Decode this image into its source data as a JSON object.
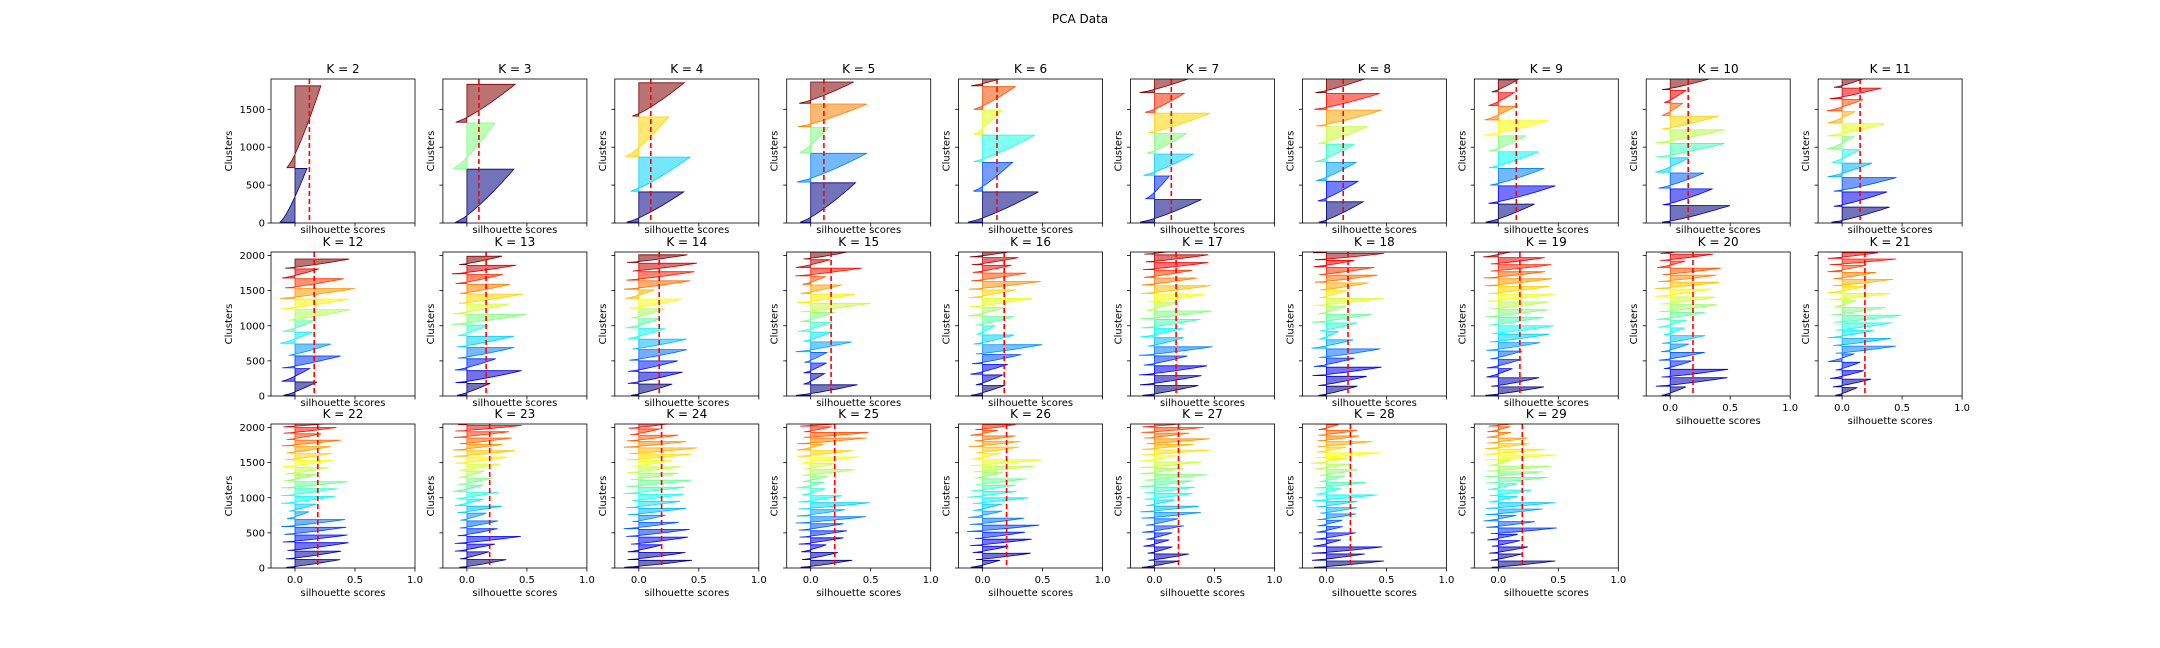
{
  "figure": {
    "title": "PCA Data"
  },
  "chart_data": {
    "type": "silhouette",
    "layout": {
      "rows": 3,
      "cols": 10
    },
    "xlabel": "silhouette scores",
    "ylabel": "Clusters",
    "xlim": [
      -0.2,
      1.0
    ],
    "xticks": [
      0.0,
      0.5,
      1.0
    ],
    "xtick_labels": [
      "0.0",
      "0.5",
      "1.0"
    ],
    "ylim_row1": [
      0,
      1900
    ],
    "yticks_row1": [
      0,
      500,
      1000,
      1500
    ],
    "ylim_rows23": [
      0,
      2050
    ],
    "yticks_rows23": [
      0,
      500,
      1000,
      1500,
      2000
    ],
    "mean_line_color": "#ff0000",
    "colormap": "jet",
    "panels": [
      {
        "title": "K = 2",
        "k": 2,
        "mean": 0.12,
        "sizes": [
          710,
          1080
        ]
      },
      {
        "title": "K = 3",
        "k": 3,
        "mean": 0.1,
        "sizes": [
          700,
          600,
          500
        ]
      },
      {
        "title": "K = 4",
        "k": 4,
        "mean": 0.1,
        "sizes": [
          400,
          450,
          520,
          440
        ]
      },
      {
        "title": "K = 5",
        "k": 5,
        "mean": 0.11,
        "sizes": [
          520,
          380,
          330,
          300,
          280
        ]
      },
      {
        "title": "K = 6",
        "k": 6,
        "mean": 0.12,
        "sizes": [
          400,
          380,
          350,
          320,
          300,
          270
        ]
      },
      {
        "title": "K = 7",
        "k": 7,
        "mean": 0.14,
        "sizes": [
          300,
          300,
          280,
          260,
          260,
          250,
          230
        ]
      },
      {
        "title": "K = 8",
        "k": 8,
        "mean": 0.14,
        "sizes": [
          270,
          260,
          240,
          230,
          220,
          210,
          210,
          200
        ]
      },
      {
        "title": "K = 9",
        "k": 9,
        "mean": 0.15,
        "sizes": [
          240,
          230,
          220,
          210,
          200,
          190,
          180,
          170,
          160
        ]
      },
      {
        "title": "K = 10",
        "k": 10,
        "mean": 0.15,
        "sizes": [
          220,
          210,
          200,
          190,
          180,
          170,
          170,
          160,
          160,
          150
        ]
      },
      {
        "title": "K = 11",
        "k": 11,
        "mean": 0.15,
        "sizes": [
          200,
          190,
          180,
          180,
          170,
          160,
          160,
          150,
          150,
          140,
          130
        ]
      },
      {
        "title": "K = 12",
        "k": 12,
        "mean": 0.16,
        "sizes": [
          190,
          180,
          170,
          160,
          160,
          150,
          150,
          140,
          140,
          130,
          130,
          130
        ]
      },
      {
        "title": "K = 13",
        "k": 13,
        "mean": 0.16,
        "sizes": [
          170,
          170,
          160,
          150,
          150,
          150,
          140,
          140,
          130,
          130,
          130,
          120,
          120
        ]
      },
      {
        "title": "K = 14",
        "k": 14,
        "mean": 0.17,
        "sizes": [
          160,
          160,
          150,
          150,
          140,
          140,
          130,
          130,
          130,
          120,
          120,
          120,
          110,
          110
        ]
      },
      {
        "title": "K = 15",
        "k": 15,
        "mean": 0.17,
        "sizes": [
          150,
          150,
          140,
          140,
          140,
          130,
          130,
          130,
          120,
          120,
          120,
          110,
          110,
          110,
          100
        ]
      },
      {
        "title": "K = 16",
        "k": 16,
        "mean": 0.18,
        "sizes": [
          140,
          140,
          140,
          130,
          130,
          130,
          120,
          120,
          120,
          120,
          110,
          110,
          110,
          100,
          100,
          100
        ]
      },
      {
        "title": "K = 17",
        "k": 17,
        "mean": 0.18,
        "sizes": [
          140,
          130,
          130,
          130,
          120,
          120,
          120,
          120,
          110,
          110,
          110,
          110,
          100,
          100,
          100,
          100,
          90
        ]
      },
      {
        "title": "K = 18",
        "k": 18,
        "mean": 0.18,
        "sizes": [
          130,
          130,
          120,
          120,
          120,
          120,
          110,
          110,
          110,
          110,
          100,
          100,
          100,
          100,
          100,
          90,
          90,
          90
        ]
      },
      {
        "title": "K = 19",
        "k": 19,
        "mean": 0.18,
        "sizes": [
          120,
          120,
          120,
          120,
          110,
          110,
          110,
          110,
          110,
          100,
          100,
          100,
          100,
          100,
          90,
          90,
          90,
          90,
          80
        ]
      },
      {
        "title": "K = 20",
        "k": 20,
        "mean": 0.19,
        "sizes": [
          120,
          120,
          110,
          110,
          110,
          110,
          110,
          100,
          100,
          100,
          100,
          100,
          100,
          90,
          90,
          90,
          90,
          90,
          80,
          80
        ]
      },
      {
        "title": "K = 21",
        "k": 21,
        "mean": 0.19,
        "sizes": [
          110,
          110,
          110,
          110,
          110,
          100,
          100,
          100,
          100,
          100,
          100,
          90,
          90,
          90,
          90,
          90,
          90,
          80,
          80,
          80,
          80
        ]
      },
      {
        "title": "K = 22",
        "k": 22,
        "mean": 0.19,
        "sizes": [
          110,
          110,
          110,
          100,
          100,
          100,
          100,
          100,
          100,
          100,
          90,
          90,
          90,
          90,
          90,
          90,
          80,
          80,
          80,
          80,
          80,
          70
        ]
      },
      {
        "title": "K = 23",
        "k": 23,
        "mean": 0.19,
        "sizes": [
          110,
          100,
          100,
          100,
          100,
          100,
          100,
          90,
          90,
          90,
          90,
          90,
          90,
          90,
          90,
          80,
          80,
          80,
          80,
          80,
          80,
          70,
          70
        ]
      },
      {
        "title": "K = 24",
        "k": 24,
        "mean": 0.19,
        "sizes": [
          100,
          100,
          100,
          100,
          100,
          90,
          90,
          90,
          90,
          90,
          90,
          90,
          90,
          80,
          80,
          80,
          80,
          80,
          80,
          80,
          70,
          70,
          70,
          70
        ]
      },
      {
        "title": "K = 25",
        "k": 25,
        "mean": 0.2,
        "sizes": [
          100,
          100,
          100,
          90,
          90,
          90,
          90,
          90,
          90,
          90,
          90,
          80,
          80,
          80,
          80,
          80,
          80,
          80,
          80,
          70,
          70,
          70,
          70,
          70,
          70
        ]
      },
      {
        "title": "K = 26",
        "k": 26,
        "mean": 0.2,
        "sizes": [
          100,
          90,
          90,
          90,
          90,
          90,
          90,
          90,
          90,
          80,
          80,
          80,
          80,
          80,
          80,
          80,
          80,
          80,
          70,
          70,
          70,
          70,
          70,
          70,
          70,
          60
        ]
      },
      {
        "title": "K = 27",
        "k": 27,
        "mean": 0.2,
        "sizes": [
          90,
          90,
          90,
          90,
          90,
          90,
          90,
          80,
          80,
          80,
          80,
          80,
          80,
          80,
          80,
          80,
          80,
          70,
          70,
          70,
          70,
          70,
          70,
          70,
          70,
          60,
          60
        ]
      },
      {
        "title": "K = 28",
        "k": 28,
        "mean": 0.2,
        "sizes": [
          90,
          90,
          90,
          90,
          90,
          80,
          80,
          80,
          80,
          80,
          80,
          80,
          80,
          80,
          80,
          70,
          70,
          70,
          70,
          70,
          70,
          70,
          70,
          70,
          60,
          60,
          60,
          60
        ]
      },
      {
        "title": "K = 29",
        "k": 29,
        "mean": 0.2,
        "sizes": [
          90,
          90,
          90,
          80,
          80,
          80,
          80,
          80,
          80,
          80,
          80,
          80,
          80,
          80,
          70,
          70,
          70,
          70,
          70,
          70,
          70,
          70,
          70,
          70,
          60,
          60,
          60,
          60,
          60
        ]
      }
    ]
  }
}
